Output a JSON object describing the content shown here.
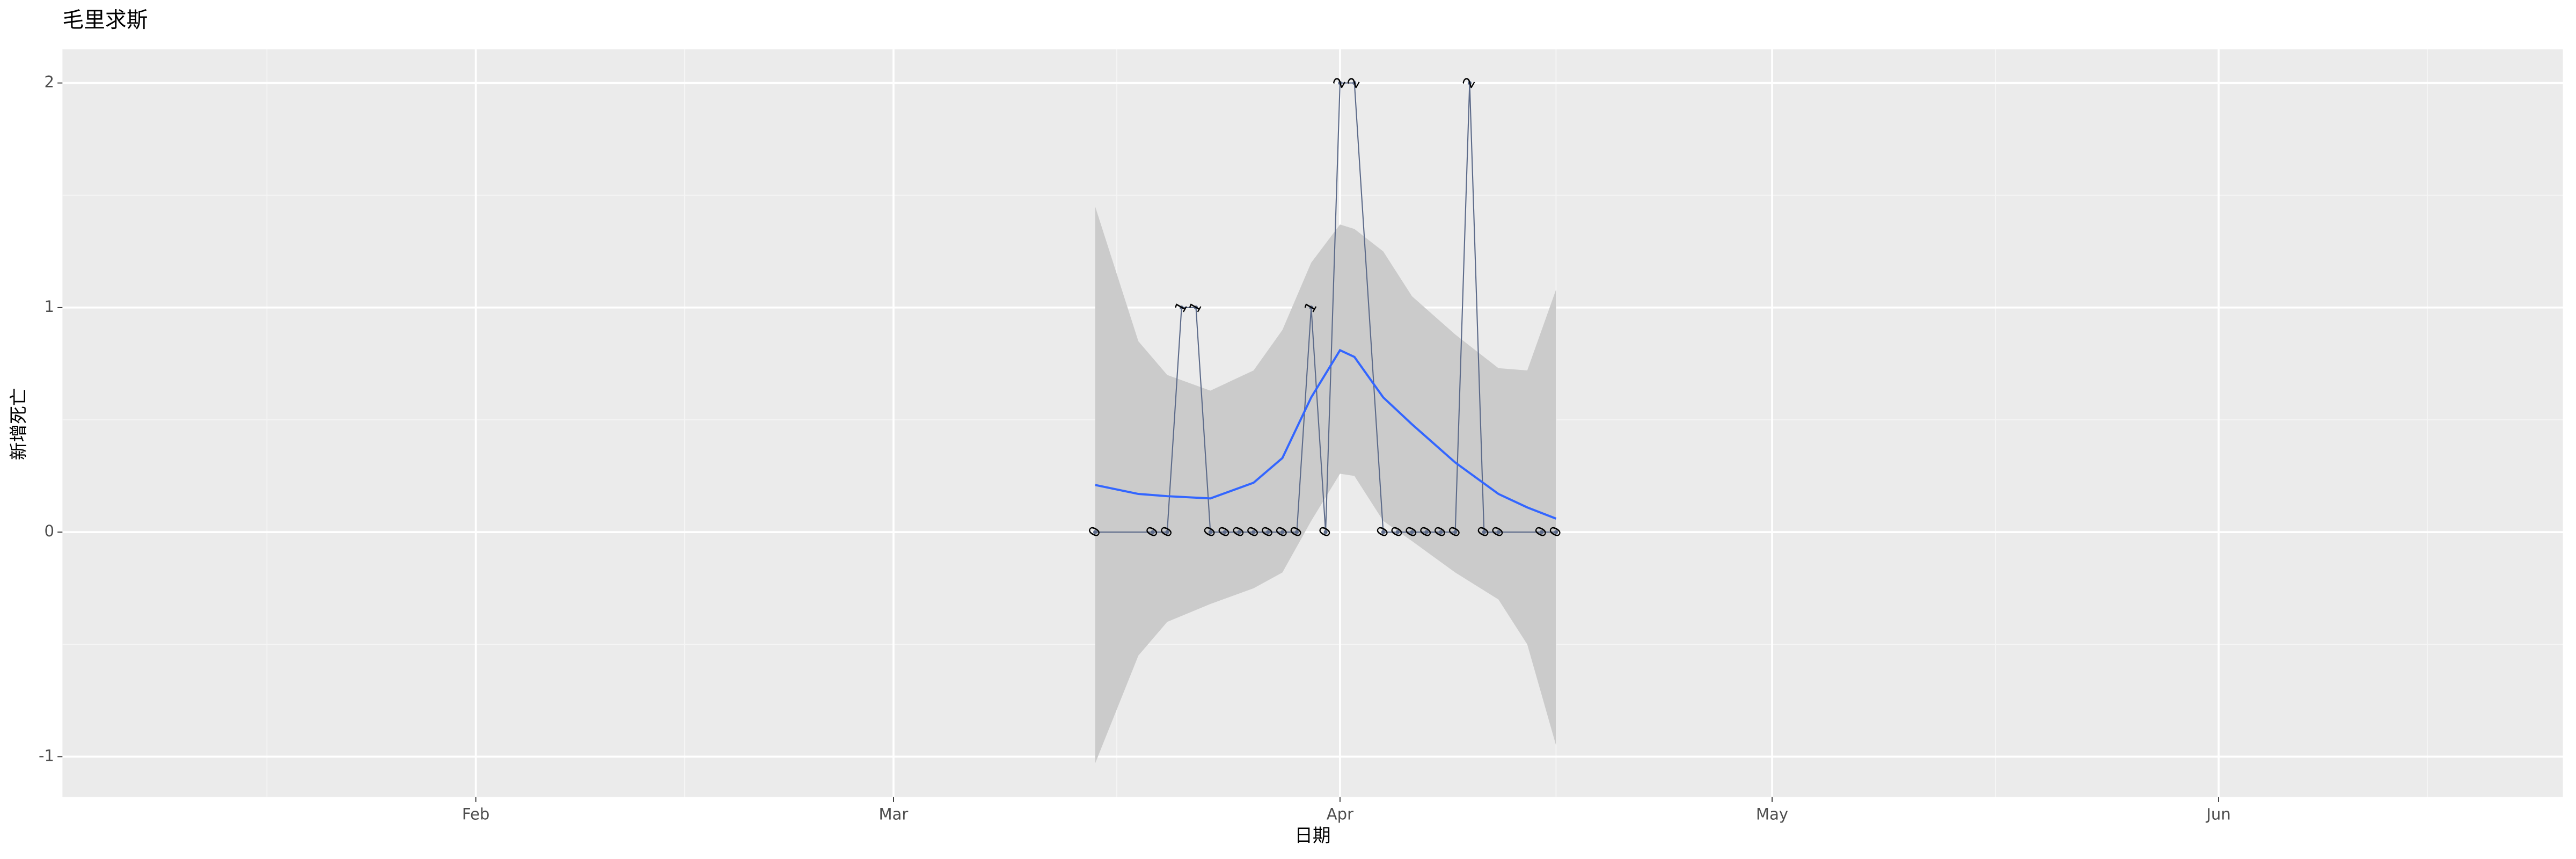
{
  "chart_data": {
    "type": "line",
    "title": "毛里求斯",
    "x_label": "日期",
    "y_label": "新增死亡",
    "xlim": [
      3.3,
      176.9
    ],
    "xticks": [
      {
        "value": 32,
        "label": "Feb"
      },
      {
        "value": 61,
        "label": "Mar"
      },
      {
        "value": 92,
        "label": "Apr"
      },
      {
        "value": 122,
        "label": "May"
      },
      {
        "value": 153,
        "label": "Jun"
      }
    ],
    "ylim": [
      -1.18,
      2.15
    ],
    "yticks": [
      -1,
      0,
      1,
      2
    ],
    "grid": true,
    "points": {
      "color": "#5d6b8a",
      "x": [
        75,
        79,
        80,
        81,
        82,
        83,
        84,
        85,
        86,
        87,
        88,
        89,
        90,
        91,
        92,
        93,
        95,
        96,
        97,
        98,
        99,
        100,
        101,
        102,
        103,
        106,
        107
      ],
      "values": [
        0,
        0,
        0,
        1,
        1,
        0,
        0,
        0,
        0,
        0,
        0,
        0,
        1,
        0,
        2,
        2,
        0,
        0,
        0,
        0,
        0,
        0,
        2,
        0,
        0,
        0,
        0
      ]
    },
    "smooth": {
      "color": "#3366ff",
      "band_color": "#cbcbcb",
      "x": [
        75,
        78,
        80,
        83,
        86,
        88,
        90,
        92,
        93,
        95,
        97,
        100,
        103,
        105,
        107
      ],
      "values": [
        0.21,
        0.17,
        0.16,
        0.15,
        0.22,
        0.33,
        0.6,
        0.81,
        0.78,
        0.6,
        0.48,
        0.31,
        0.17,
        0.11,
        0.06
      ],
      "upper": [
        1.45,
        0.85,
        0.7,
        0.63,
        0.72,
        0.9,
        1.2,
        1.37,
        1.35,
        1.25,
        1.05,
        0.88,
        0.73,
        0.72,
        1.08
      ],
      "lower": [
        -1.03,
        -0.55,
        -0.4,
        -0.32,
        -0.25,
        -0.18,
        0.05,
        0.26,
        0.25,
        0.05,
        -0.04,
        -0.18,
        -0.3,
        -0.5,
        -0.95
      ]
    }
  }
}
